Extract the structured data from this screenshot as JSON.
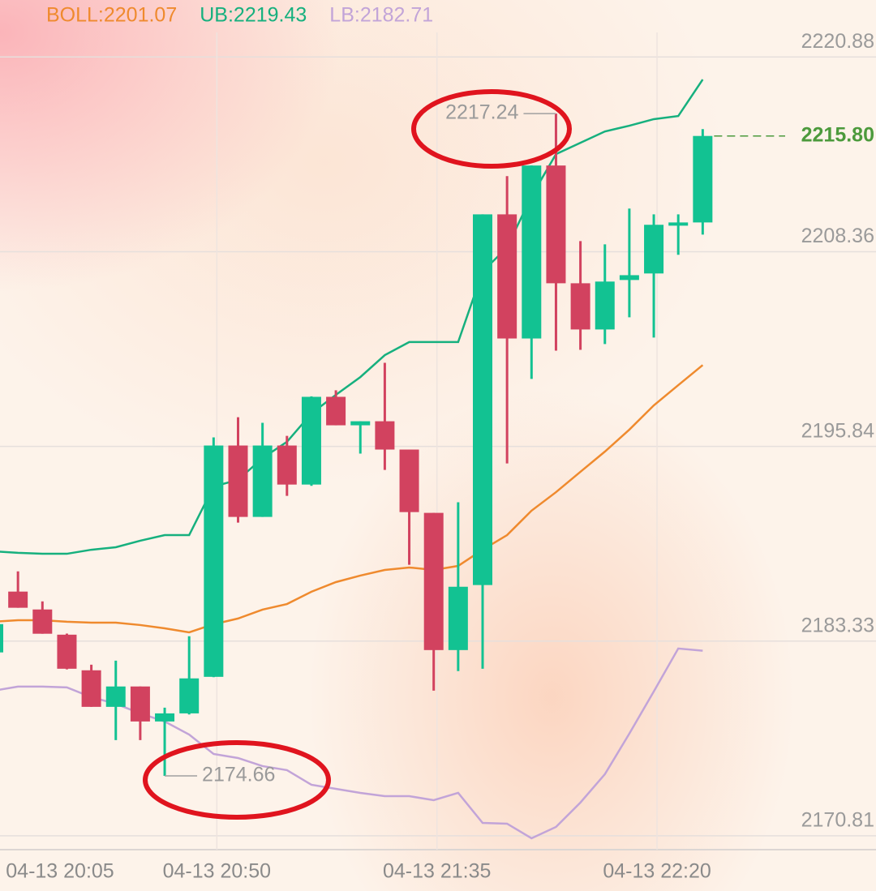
{
  "chart_data": {
    "type": "candlestick",
    "categories": [
      "04-13 20:05",
      null,
      null,
      null,
      null,
      null,
      null,
      null,
      null,
      "04-13 20:50",
      null,
      null,
      null,
      null,
      null,
      null,
      null,
      null,
      "04-13 21:35",
      null,
      null,
      null,
      null,
      null,
      null,
      null,
      null,
      "04-13 22:20",
      null,
      null
    ],
    "open": [
      2182.6,
      2186.51,
      2185.36,
      2183.74,
      2181.45,
      2179.1,
      2180.41,
      2178.16,
      2178.68,
      2181.03,
      2195.9,
      2191.31,
      2195.9,
      2193.39,
      2199.03,
      2197.2,
      2197.46,
      2195.64,
      2191.57,
      2182.75,
      2186.93,
      2210.76,
      2202.78,
      2213.9,
      2206.33,
      2203.36,
      2206.54,
      2206.96,
      2210.09,
      2210.24
    ],
    "high": [
      2184.91,
      2187.81,
      2185.88,
      2183.81,
      2181.81,
      2182.07,
      2180.41,
      2179.05,
      2183.64,
      2196.42,
      2197.72,
      2197.36,
      2196.52,
      2199.06,
      2199.45,
      2197.46,
      2201.22,
      2195.64,
      2191.57,
      2192.25,
      2210.76,
      2213.22,
      2213.91,
      2217.24,
      2209.04,
      2208.83,
      2211.13,
      2210.76,
      2210.76,
      2216.24
    ],
    "low": [
      2182.41,
      2185.47,
      2183.8,
      2181.51,
      2179.1,
      2176.96,
      2176.96,
      2174.66,
      2178.61,
      2181.01,
      2190.94,
      2191.31,
      2192.66,
      2193.31,
      2197.2,
      2195.38,
      2194.33,
      2188.23,
      2180.14,
      2181.4,
      2181.55,
      2194.75,
      2200.18,
      2202.0,
      2202.05,
      2202.42,
      2204.14,
      2202.84,
      2208.16,
      2209.46
    ],
    "close": [
      2184.42,
      2185.47,
      2183.8,
      2181.55,
      2179.1,
      2180.41,
      2178.16,
      2178.68,
      2180.93,
      2195.9,
      2191.31,
      2195.9,
      2193.39,
      2199.03,
      2197.2,
      2197.46,
      2195.64,
      2191.62,
      2182.75,
      2186.82,
      2210.76,
      2202.78,
      2213.9,
      2206.33,
      2203.36,
      2206.44,
      2206.85,
      2210.09,
      2210.24,
      2215.8
    ],
    "up_color": "#12c292",
    "down_color": "#d2425f",
    "series": [
      {
        "name": "BOLL:2201.07",
        "color": "#ef8a2e",
        "values": [
          2184.57,
          2184.67,
          2184.67,
          2184.57,
          2184.51,
          2184.51,
          2184.36,
          2184.15,
          2183.89,
          2184.41,
          2184.78,
          2185.35,
          2185.71,
          2186.5,
          2187.12,
          2187.54,
          2187.9,
          2188.06,
          2187.9,
          2188.16,
          2189.2,
          2190.14,
          2191.71,
          2192.9,
          2194.21,
          2195.51,
          2196.92,
          2198.48,
          2199.78,
          2201.07
        ]
      },
      {
        "name": "UB:2219.43",
        "color": "#16b07e",
        "values": [
          2189.1,
          2189.0,
          2188.94,
          2188.94,
          2189.2,
          2189.36,
          2189.78,
          2190.14,
          2190.14,
          2193.27,
          2193.69,
          2195.09,
          2196.14,
          2197.96,
          2199.16,
          2200.3,
          2201.71,
          2202.55,
          2202.55,
          2202.55,
          2207.08,
          2208.64,
          2211.92,
          2214.63,
          2215.36,
          2216.09,
          2216.46,
          2216.88,
          2217.08,
          2219.43
        ]
      },
      {
        "name": "LB:2182.71",
        "color": "#c2a4d8",
        "values": [
          2180.14,
          2180.4,
          2180.4,
          2180.35,
          2179.72,
          2179.3,
          2178.68,
          2178.16,
          2177.32,
          2176.07,
          2175.81,
          2175.29,
          2175.03,
          2174.09,
          2173.83,
          2173.57,
          2173.36,
          2173.36,
          2173.1,
          2173.57,
          2171.64,
          2171.59,
          2170.65,
          2171.38,
          2172.95,
          2174.77,
          2177.38,
          2180.09,
          2182.85,
          2182.71
        ]
      }
    ],
    "last_price": {
      "value": 2215.8,
      "label": "2215.80"
    },
    "last_price_color": "#4c9a3c",
    "ylim": [
      2169.92,
      2224.54
    ],
    "yticks": [
      2220.88,
      2208.36,
      2195.84,
      2183.33,
      2170.81
    ],
    "grid": true
  }
}
